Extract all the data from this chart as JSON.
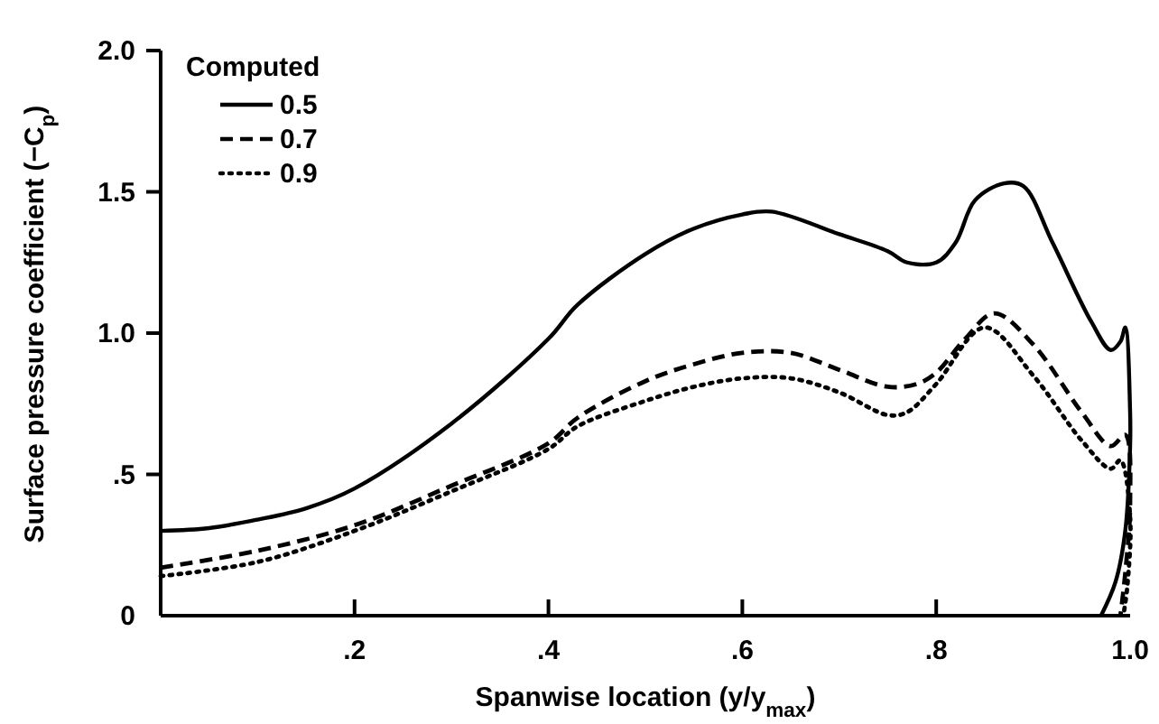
{
  "chart_data": {
    "type": "line",
    "xlabel": "Spanwise location (y/y$_{max}$)",
    "ylabel": "Surface pressure coefficient (−C$_{p}$)",
    "legend_title": "Computed",
    "legend": "top left",
    "grid": false,
    "xlim": [
      0,
      1
    ],
    "ylim": [
      0,
      2
    ],
    "xticks": [
      {
        "value": 0.2,
        "label": ".2"
      },
      {
        "value": 0.4,
        "label": ".4"
      },
      {
        "value": 0.6,
        "label": ".6"
      },
      {
        "value": 0.8,
        "label": ".8"
      },
      {
        "value": 1,
        "label": "1.0"
      }
    ],
    "yticks": [
      0,
      {
        "value": 0.5,
        "label": ".5"
      },
      {
        "value": 1,
        "label": "1.0"
      },
      {
        "value": 1.5,
        "label": "1.5"
      },
      {
        "value": 2,
        "label": "2.0"
      }
    ],
    "series": [
      {
        "name": "0.5",
        "color": "#000000",
        "line_style": "solid",
        "x": [
          0,
          0.05,
          0.1,
          0.15,
          0.2,
          0.3,
          0.4,
          0.43,
          0.5,
          0.55,
          0.6,
          0.63,
          0.7,
          0.75,
          0.77,
          0.8,
          0.82,
          0.84,
          0.87,
          0.89,
          0.92,
          0.96,
          0.98,
          0.99,
          0.995,
          1,
          1,
          0.995,
          0.985,
          0.97
        ],
        "values": [
          0.3,
          0.31,
          0.34,
          0.38,
          0.45,
          0.68,
          0.98,
          1.1,
          1.28,
          1.37,
          1.42,
          1.43,
          1.35,
          1.29,
          1.25,
          1.25,
          1.32,
          1.47,
          1.53,
          1.52,
          1.32,
          1.04,
          0.94,
          0.97,
          1.02,
          0.72,
          0.6,
          0.3,
          0.12,
          0
        ]
      },
      {
        "name": "0.7",
        "color": "#000000",
        "line_style": "dashed",
        "x": [
          0,
          0.1,
          0.2,
          0.3,
          0.4,
          0.43,
          0.5,
          0.55,
          0.6,
          0.65,
          0.7,
          0.75,
          0.78,
          0.8,
          0.83,
          0.86,
          0.9,
          0.95,
          0.98,
          0.995,
          1,
          0.995,
          0.99
        ],
        "values": [
          0.17,
          0.23,
          0.32,
          0.46,
          0.61,
          0.7,
          0.83,
          0.89,
          0.93,
          0.93,
          0.87,
          0.81,
          0.82,
          0.86,
          0.98,
          1.07,
          0.96,
          0.72,
          0.6,
          0.64,
          0.4,
          0.15,
          0
        ]
      },
      {
        "name": "0.9",
        "color": "#000000",
        "line_style": "dotted",
        "x": [
          0,
          0.1,
          0.2,
          0.3,
          0.4,
          0.43,
          0.5,
          0.55,
          0.6,
          0.65,
          0.7,
          0.75,
          0.77,
          0.8,
          0.85,
          0.9,
          0.95,
          0.98,
          0.99,
          1,
          0.997,
          0.993
        ],
        "values": [
          0.14,
          0.19,
          0.3,
          0.44,
          0.59,
          0.67,
          0.76,
          0.81,
          0.84,
          0.84,
          0.79,
          0.71,
          0.72,
          0.82,
          1.02,
          0.85,
          0.62,
          0.52,
          0.55,
          0.35,
          0.1,
          0
        ]
      }
    ]
  }
}
